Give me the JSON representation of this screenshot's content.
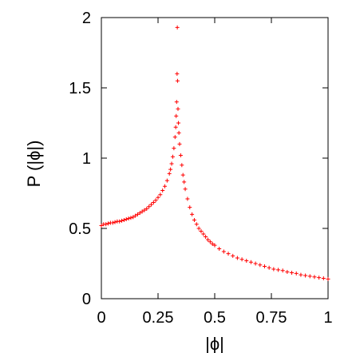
{
  "chart_data": {
    "type": "scatter",
    "xlabel": "|ϕ|",
    "ylabel": "P (|ϕ|)",
    "xlim": [
      0,
      1
    ],
    "ylim": [
      0,
      2
    ],
    "x_ticks": [
      {
        "value": 0,
        "label": "0"
      },
      {
        "value": 0.25,
        "label": "0.25"
      },
      {
        "value": 0.5,
        "label": "0.5"
      },
      {
        "value": 0.75,
        "label": "0.75"
      },
      {
        "value": 1,
        "label": "1"
      }
    ],
    "y_ticks": [
      {
        "value": 0,
        "label": "0"
      },
      {
        "value": 0.5,
        "label": "0.5"
      },
      {
        "value": 1,
        "label": "1"
      },
      {
        "value": 1.5,
        "label": "1.5"
      },
      {
        "value": 2,
        "label": "2"
      }
    ],
    "grid": false,
    "legend": "none",
    "marker": "plus",
    "series": [
      {
        "color": "#ff0000",
        "points": [
          [
            0.0,
            0.52
          ],
          [
            0.01,
            0.53
          ],
          [
            0.02,
            0.53
          ],
          [
            0.03,
            0.535
          ],
          [
            0.04,
            0.54
          ],
          [
            0.05,
            0.54
          ],
          [
            0.06,
            0.545
          ],
          [
            0.07,
            0.55
          ],
          [
            0.08,
            0.55
          ],
          [
            0.09,
            0.555
          ],
          [
            0.1,
            0.56
          ],
          [
            0.11,
            0.565
          ],
          [
            0.12,
            0.57
          ],
          [
            0.13,
            0.575
          ],
          [
            0.14,
            0.58
          ],
          [
            0.15,
            0.59
          ],
          [
            0.16,
            0.6
          ],
          [
            0.17,
            0.61
          ],
          [
            0.18,
            0.62
          ],
          [
            0.19,
            0.63
          ],
          [
            0.2,
            0.64
          ],
          [
            0.21,
            0.655
          ],
          [
            0.22,
            0.67
          ],
          [
            0.23,
            0.685
          ],
          [
            0.24,
            0.7
          ],
          [
            0.25,
            0.72
          ],
          [
            0.26,
            0.74
          ],
          [
            0.27,
            0.77
          ],
          [
            0.28,
            0.8
          ],
          [
            0.29,
            0.84
          ],
          [
            0.3,
            0.89
          ],
          [
            0.305,
            0.92
          ],
          [
            0.31,
            0.96
          ],
          [
            0.315,
            1.01
          ],
          [
            0.32,
            1.07
          ],
          [
            0.325,
            1.15
          ],
          [
            0.328,
            1.22
          ],
          [
            0.33,
            1.3
          ],
          [
            0.332,
            1.4
          ],
          [
            0.334,
            1.6
          ],
          [
            0.335,
            1.93
          ],
          [
            0.336,
            1.55
          ],
          [
            0.338,
            1.35
          ],
          [
            0.34,
            1.25
          ],
          [
            0.342,
            1.18
          ],
          [
            0.345,
            1.1
          ],
          [
            0.35,
            1.02
          ],
          [
            0.355,
            0.95
          ],
          [
            0.36,
            0.88
          ],
          [
            0.365,
            0.83
          ],
          [
            0.37,
            0.78
          ],
          [
            0.38,
            0.71
          ],
          [
            0.39,
            0.65
          ],
          [
            0.4,
            0.6
          ],
          [
            0.41,
            0.56
          ],
          [
            0.42,
            0.53
          ],
          [
            0.43,
            0.5
          ],
          [
            0.44,
            0.48
          ],
          [
            0.45,
            0.46
          ],
          [
            0.46,
            0.44
          ],
          [
            0.47,
            0.42
          ],
          [
            0.48,
            0.405
          ],
          [
            0.49,
            0.39
          ],
          [
            0.5,
            0.38
          ],
          [
            0.52,
            0.355
          ],
          [
            0.54,
            0.335
          ],
          [
            0.56,
            0.32
          ],
          [
            0.58,
            0.305
          ],
          [
            0.6,
            0.29
          ],
          [
            0.62,
            0.28
          ],
          [
            0.64,
            0.27
          ],
          [
            0.66,
            0.26
          ],
          [
            0.68,
            0.25
          ],
          [
            0.7,
            0.24
          ],
          [
            0.72,
            0.23
          ],
          [
            0.74,
            0.22
          ],
          [
            0.76,
            0.21
          ],
          [
            0.78,
            0.205
          ],
          [
            0.8,
            0.2
          ],
          [
            0.82,
            0.19
          ],
          [
            0.84,
            0.185
          ],
          [
            0.86,
            0.18
          ],
          [
            0.88,
            0.17
          ],
          [
            0.9,
            0.165
          ],
          [
            0.92,
            0.16
          ],
          [
            0.94,
            0.155
          ],
          [
            0.96,
            0.15
          ],
          [
            0.98,
            0.145
          ],
          [
            1.0,
            0.14
          ]
        ]
      }
    ]
  }
}
